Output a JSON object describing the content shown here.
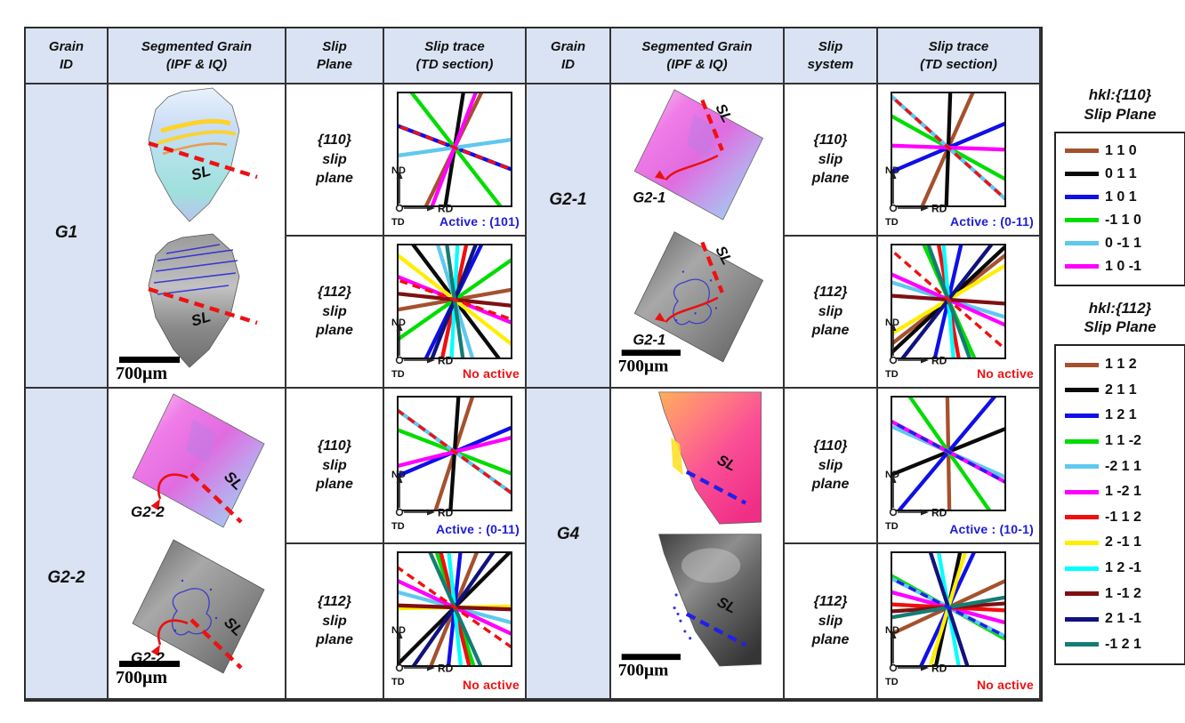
{
  "headers": [
    {
      "l1": "Grain",
      "l2": "ID"
    },
    {
      "l1": "Segmented Grain",
      "l2": "(IPF & IQ)"
    },
    {
      "l1": "Slip",
      "l2": "Plane"
    },
    {
      "l1": "Slip trace",
      "l2": "(TD section)"
    },
    {
      "l1": "Grain",
      "l2": "ID"
    },
    {
      "l1": "Segmented Grain",
      "l2": "(IPF & IQ)"
    },
    {
      "l1": "Slip",
      "l2": "system"
    },
    {
      "l1": "Slip trace",
      "l2": "(TD section)"
    }
  ],
  "axis": {
    "nd": "ND",
    "rd": "RD",
    "td": "TD"
  },
  "scale_label": "700μm",
  "sl_label": "SL",
  "palette": {
    "brown": "#A5512D",
    "black": "#0a0a0a",
    "blue": "#0f0fe8",
    "green": "#00dc00",
    "sky": "#5fc8ee",
    "magenta": "#ff00ff",
    "red": "#f10e0e",
    "yellow": "#ffee00",
    "cyan": "#00ffff",
    "maroon": "#7e1012",
    "navy": "#10127e",
    "teal": "#157c74"
  },
  "status_colors": {
    "active": "#1c1cd8",
    "inactive": "#f01111"
  },
  "grains": [
    {
      "id": "G1",
      "sl_color": "#ee1111",
      "callout": null,
      "traces": [
        {
          "plane": [
            "{110}",
            "slip",
            "plane"
          ],
          "lines": [
            {
              "c": "brown",
              "a": 64
            },
            {
              "c": "black",
              "a": 81
            },
            {
              "c": "blue",
              "a": -21
            },
            {
              "c": "green",
              "a": -52
            },
            {
              "c": "sky",
              "a": 8
            },
            {
              "c": "magenta",
              "a": 69
            }
          ],
          "dash": {
            "c": "#ee1111",
            "a": -21
          },
          "status": {
            "text": "Active : (101)",
            "color": "#1c1cd8"
          }
        },
        {
          "plane": [
            "{112}",
            "slip",
            "plane"
          ],
          "lines": [
            {
              "c": "brown",
              "a": 10
            },
            {
              "c": "black",
              "a": -53
            },
            {
              "c": "blue",
              "a": 64
            },
            {
              "c": "green",
              "a": 35
            },
            {
              "c": "sky",
              "a": -73
            },
            {
              "c": "magenta",
              "a": -22
            },
            {
              "c": "red",
              "a": 78
            },
            {
              "c": "yellow",
              "a": -38
            },
            {
              "c": "cyan",
              "a": 87
            },
            {
              "c": "maroon",
              "a": -6
            },
            {
              "c": "navy",
              "a": 69
            },
            {
              "c": "teal",
              "a": -82
            }
          ],
          "dash": {
            "c": "#ee1111",
            "a": -19
          },
          "status": {
            "text": "No active",
            "color": "#f01111"
          }
        }
      ]
    },
    {
      "id": "G2-1",
      "sl_color": "#ee1111",
      "callout": "G2-1",
      "traces": [
        {
          "plane": [
            "{110}",
            "slip",
            "plane"
          ],
          "lines": [
            {
              "c": "brown",
              "a": 66
            },
            {
              "c": "black",
              "a": 88
            },
            {
              "c": "blue",
              "a": 23
            },
            {
              "c": "green",
              "a": -29
            },
            {
              "c": "sky",
              "a": -42
            },
            {
              "c": "magenta",
              "a": -2
            }
          ],
          "dash": {
            "c": "#ee1111",
            "a": -42
          },
          "status": {
            "text": "Active : (0-11)",
            "color": "#1c1cd8"
          }
        },
        {
          "plane": [
            "{112}",
            "slip",
            "plane"
          ],
          "lines": [
            {
              "c": "brown",
              "a": 38
            },
            {
              "c": "black",
              "a": 43
            },
            {
              "c": "blue",
              "a": 77
            },
            {
              "c": "green",
              "a": -66
            },
            {
              "c": "sky",
              "a": -17
            },
            {
              "c": "magenta",
              "a": -24
            },
            {
              "c": "red",
              "a": -80
            },
            {
              "c": "yellow",
              "a": 31
            },
            {
              "c": "cyan",
              "a": -85
            },
            {
              "c": "maroon",
              "a": -4
            },
            {
              "c": "navy",
              "a": 52
            },
            {
              "c": "teal",
              "a": -70
            }
          ],
          "dash": {
            "c": "#ee1111",
            "a": -41
          },
          "status": {
            "text": "No active",
            "color": "#f01111"
          }
        }
      ]
    },
    {
      "id": "G2-2",
      "sl_color": "#ee1111",
      "callout": "G2-2",
      "traces": [
        {
          "plane": [
            "{110}",
            "slip",
            "plane"
          ],
          "lines": [
            {
              "c": "brown",
              "a": 72
            },
            {
              "c": "black",
              "a": 86
            },
            {
              "c": "blue",
              "a": 23
            },
            {
              "c": "green",
              "a": -21
            },
            {
              "c": "sky",
              "a": -36
            },
            {
              "c": "magenta",
              "a": 14
            }
          ],
          "dash": {
            "c": "#ee1111",
            "a": -36
          },
          "status": {
            "text": "Active : (0-11)",
            "color": "#1c1cd8"
          }
        },
        {
          "plane": [
            "{112}",
            "slip",
            "plane"
          ],
          "lines": [
            {
              "c": "brown",
              "a": 68
            },
            {
              "c": "black",
              "a": 45
            },
            {
              "c": "blue",
              "a": 84
            },
            {
              "c": "green",
              "a": -72
            },
            {
              "c": "sky",
              "a": -15
            },
            {
              "c": "magenta",
              "a": -25
            },
            {
              "c": "red",
              "a": -76
            },
            {
              "c": "yellow",
              "a": 1
            },
            {
              "c": "cyan",
              "a": -84
            },
            {
              "c": "maroon",
              "a": -2
            },
            {
              "c": "navy",
              "a": 55
            },
            {
              "c": "teal",
              "a": -66
            }
          ],
          "dash": {
            "c": "#ee1111",
            "a": -35
          },
          "status": {
            "text": "No active",
            "color": "#f01111"
          }
        }
      ]
    },
    {
      "id": "G4",
      "sl_color": "#2020e8",
      "callout": null,
      "traces": [
        {
          "plane": [
            "{110}",
            "slip",
            "plane"
          ],
          "lines": [
            {
              "c": "brown",
              "a": -89
            },
            {
              "c": "black",
              "a": 22
            },
            {
              "c": "blue",
              "a": 50
            },
            {
              "c": "green",
              "a": -55
            },
            {
              "c": "sky",
              "a": -24
            },
            {
              "c": "magenta",
              "a": -28
            }
          ],
          "dash": {
            "c": "#2020e8",
            "a": -28
          },
          "status": {
            "text": "Active : (10-1)",
            "color": "#1c1cd8"
          }
        },
        {
          "plane": [
            "{112}",
            "slip",
            "plane"
          ],
          "lines": [
            {
              "c": "brown",
              "a": 25
            },
            {
              "c": "black",
              "a": 78
            },
            {
              "c": "blue",
              "a": 65
            },
            {
              "c": "green",
              "a": -29
            },
            {
              "c": "sky",
              "a": -27
            },
            {
              "c": "magenta",
              "a": -15
            },
            {
              "c": "red",
              "a": -3
            },
            {
              "c": "yellow",
              "a": 73
            },
            {
              "c": "cyan",
              "a": -80
            },
            {
              "c": "maroon",
              "a": 4
            },
            {
              "c": "navy",
              "a": -72
            },
            {
              "c": "teal",
              "a": 10
            }
          ],
          "dash": {
            "c": "#2020e8",
            "a": -27
          },
          "status": {
            "text": "No active",
            "color": "#f01111"
          }
        }
      ]
    }
  ],
  "legends": [
    {
      "title": [
        "hkl:{110}",
        "Slip Plane"
      ],
      "entries": [
        {
          "c": "brown",
          "label": "1 1 0"
        },
        {
          "c": "black",
          "label": "0 1 1"
        },
        {
          "c": "blue",
          "label": "1 0 1"
        },
        {
          "c": "green",
          "label": "-1 1 0"
        },
        {
          "c": "sky",
          "label": "0 -1 1"
        },
        {
          "c": "magenta",
          "label": "1 0 -1"
        }
      ]
    },
    {
      "title": [
        "hkl:{112}",
        "Slip Plane"
      ],
      "entries": [
        {
          "c": "brown",
          "label": "1 1 2"
        },
        {
          "c": "black",
          "label": "2 1 1"
        },
        {
          "c": "blue",
          "label": "1 2 1"
        },
        {
          "c": "green",
          "label": "1 1 -2"
        },
        {
          "c": "sky",
          "label": "-2 1 1"
        },
        {
          "c": "magenta",
          "label": "1 -2 1"
        },
        {
          "c": "red",
          "label": "-1 1 2"
        },
        {
          "c": "yellow",
          "label": "2 -1 1"
        },
        {
          "c": "cyan",
          "label": "1 2 -1"
        },
        {
          "c": "maroon",
          "label": "1 -1 2"
        },
        {
          "c": "navy",
          "label": "2 1 -1"
        },
        {
          "c": "teal",
          "label": "-1 2 1"
        }
      ]
    }
  ]
}
